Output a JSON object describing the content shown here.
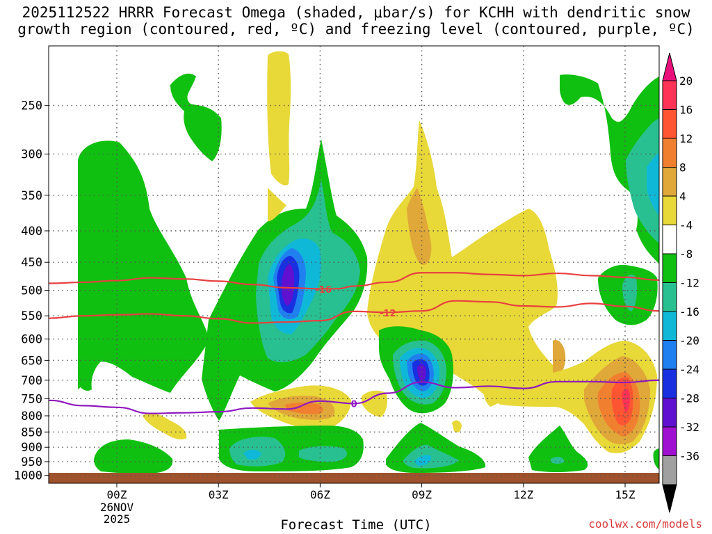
{
  "title": {
    "line1": "2025112522 HRRR Forecast Omega (shaded, μbar/s) for KCHH with dendritic snow",
    "line2": "growth region (contoured, red, ºC) and freezing level (contoured, purple, ºC)"
  },
  "xlabel": "Forecast Time (UTC)",
  "credit": "coolwx.com/models",
  "chart_data": {
    "type": "contour",
    "title": "2025112522 HRRR Forecast Omega (shaded, μbar/s) for KCHH with dendritic snow growth region (contoured, red, ºC) and freezing level (contoured, purple, ºC)",
    "xlabel": "Forecast Time (UTC)",
    "ylabel": "",
    "x_ticks": [
      {
        "h": 0,
        "label": "00Z",
        "sub": [
          "26NOV",
          "2025"
        ]
      },
      {
        "h": 3,
        "label": "03Z"
      },
      {
        "h": 6,
        "label": "06Z"
      },
      {
        "h": 9,
        "label": "09Z"
      },
      {
        "h": 12,
        "label": "12Z"
      },
      {
        "h": 15,
        "label": "15Z"
      }
    ],
    "xlim": [
      -2,
      16
    ],
    "y_ticks": [
      250,
      300,
      350,
      400,
      450,
      500,
      550,
      600,
      650,
      700,
      750,
      800,
      850,
      900,
      950,
      1000
    ],
    "ylim": [
      1030,
      200
    ],
    "y_scale": "log-pressure",
    "grid": "dotted",
    "colorbar": {
      "levels": [
        20,
        16,
        12,
        8,
        4,
        -4,
        -8,
        -12,
        -16,
        -20,
        -24,
        -28,
        -32,
        -36
      ],
      "colors": [
        "#ff3355",
        "#ff5533",
        "#f08030",
        "#e0a838",
        "#e8d838",
        "#ffffff",
        "#10c010",
        "#28c090",
        "#10b8d8",
        "#2080f0",
        "#1830e0",
        "#6010d0",
        "#a010d0",
        "#a0a0a0",
        "#000000"
      ],
      "top_arrow_color": "#e8107a",
      "bottom_arrow_color": "#000000"
    },
    "contours": [
      {
        "name": "-16",
        "color": "#e84040",
        "points": [
          [
            -2,
            487
          ],
          [
            -1,
            485
          ],
          [
            0,
            482
          ],
          [
            1,
            477
          ],
          [
            2,
            479
          ],
          [
            3,
            483
          ],
          [
            4,
            489
          ],
          [
            5,
            495
          ],
          [
            6,
            497
          ],
          [
            6.5,
            497
          ],
          [
            7,
            492
          ],
          [
            8,
            485
          ],
          [
            9,
            468
          ],
          [
            10,
            468
          ],
          [
            11,
            471
          ],
          [
            12,
            473
          ],
          [
            13,
            469
          ],
          [
            14,
            473
          ],
          [
            15,
            476
          ],
          [
            16,
            481
          ]
        ],
        "label": {
          "h": 6.1,
          "p": 498,
          "text": "-16"
        }
      },
      {
        "name": "-12",
        "color": "#e84040",
        "points": [
          [
            -2,
            555
          ],
          [
            -1,
            550
          ],
          [
            0,
            548
          ],
          [
            1,
            546
          ],
          [
            2,
            550
          ],
          [
            3,
            556
          ],
          [
            4,
            565
          ],
          [
            5,
            563
          ],
          [
            6,
            560
          ],
          [
            7,
            541
          ],
          [
            8,
            543
          ],
          [
            9,
            540
          ],
          [
            10,
            520
          ],
          [
            11,
            522
          ],
          [
            12,
            530
          ],
          [
            13,
            532
          ],
          [
            14,
            525
          ],
          [
            15,
            531
          ],
          [
            16,
            540
          ]
        ],
        "label": {
          "h": 8,
          "p": 544,
          "text": "-12"
        }
      },
      {
        "name": "0",
        "color": "#9018c0",
        "points": [
          [
            -2,
            755
          ],
          [
            -1,
            770
          ],
          [
            0,
            775
          ],
          [
            1,
            793
          ],
          [
            2,
            791
          ],
          [
            3,
            788
          ],
          [
            4,
            777
          ],
          [
            5,
            780
          ],
          [
            6,
            757
          ],
          [
            7,
            764
          ],
          [
            8,
            735
          ],
          [
            9,
            705
          ],
          [
            10,
            720
          ],
          [
            11,
            716
          ],
          [
            12,
            722
          ],
          [
            13,
            704
          ],
          [
            14,
            704
          ],
          [
            15,
            706
          ],
          [
            16,
            700
          ]
        ],
        "label": {
          "h": 7,
          "p": 764,
          "text": "0"
        }
      }
    ],
    "omega_regions": [
      {
        "level": "-4",
        "desc": "green regions",
        "hours": [
          -1.2,
          6.5
        ]
      },
      {
        "level": "-24",
        "desc": "minimum near 05Z 500mb",
        "h": 5,
        "p": 500
      },
      {
        "level": "-24",
        "desc": "minimum near 09Z 700mb",
        "h": 9,
        "p": 690
      },
      {
        "level": "16",
        "desc": "maximum near 15Z 770mb",
        "h": 15,
        "p": 770
      },
      {
        "level": "8",
        "desc": "maximum near 09Z 420mb",
        "h": 9,
        "p": 420
      }
    ]
  }
}
